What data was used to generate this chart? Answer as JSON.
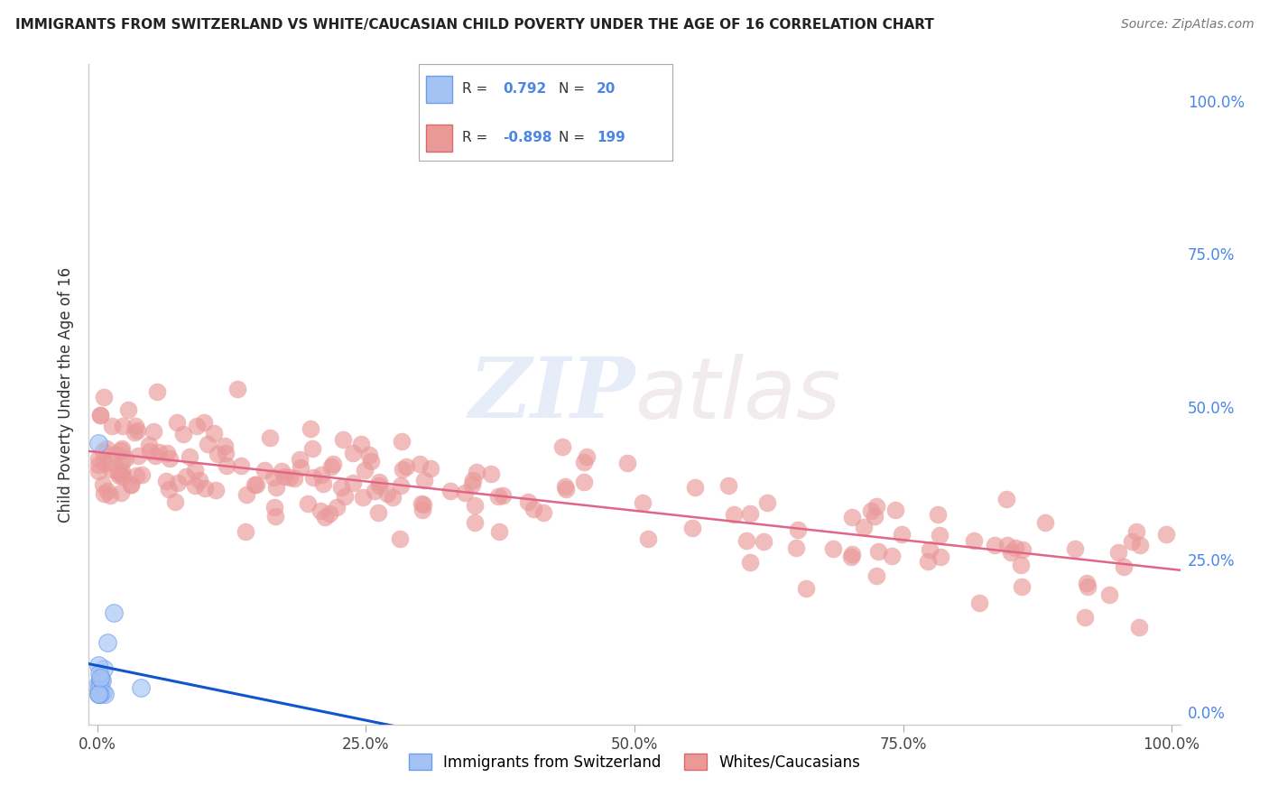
{
  "title": "IMMIGRANTS FROM SWITZERLAND VS WHITE/CAUCASIAN CHILD POVERTY UNDER THE AGE OF 16 CORRELATION CHART",
  "source": "Source: ZipAtlas.com",
  "ylabel": "Child Poverty Under the Age of 16",
  "blue_color": "#a4c2f4",
  "blue_edge": "#6d9eeb",
  "pink_color": "#ea9999",
  "pink_edge": "#e06666",
  "blue_line_color": "#1155cc",
  "pink_line_color": "#e06688",
  "R_blue": 0.792,
  "N_blue": 20,
  "R_pink": -0.898,
  "N_pink": 199,
  "legend_blue_label": "Immigrants from Switzerland",
  "legend_pink_label": "Whites/Caucasians",
  "watermark_zip": "ZIP",
  "watermark_atlas": "atlas",
  "ytick_labels_right": [
    "0.0%",
    "25.0%",
    "50.0%",
    "75.0%",
    "100.0%"
  ],
  "xtick_labels": [
    "0.0%",
    "25.0%",
    "50.0%",
    "75.0%",
    "100.0%"
  ]
}
